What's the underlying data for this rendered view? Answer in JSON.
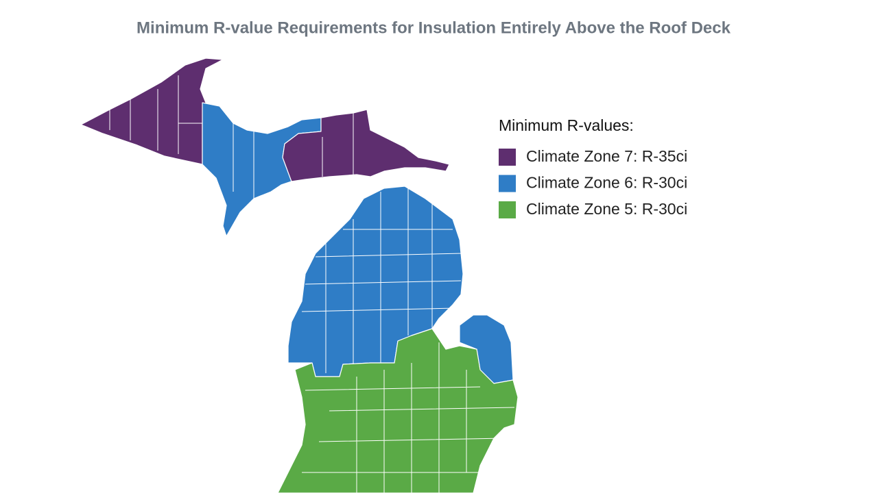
{
  "title": "Minimum R-value Requirements for Insulation Entirely Above the Roof Deck",
  "legend": {
    "title": "Minimum R-values:",
    "items": [
      {
        "label": "Climate Zone 7: R-35ci",
        "color": "#5e2e6f"
      },
      {
        "label": "Climate Zone 6: R-30ci",
        "color": "#2f7dc6"
      },
      {
        "label": "Climate Zone 5: R-30ci",
        "color": "#5aaa46"
      }
    ]
  }
}
